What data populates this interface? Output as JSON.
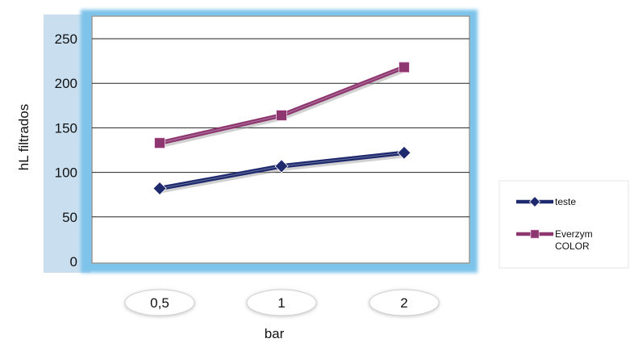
{
  "chart_data": {
    "type": "line",
    "title": "",
    "xlabel": "bar",
    "ylabel": "hL filtrados",
    "categories": [
      "0,5",
      "1",
      "2"
    ],
    "ylim": [
      0,
      250
    ],
    "yticks": [
      0,
      50,
      100,
      150,
      200,
      250
    ],
    "grid": true,
    "legend_position": "right",
    "series": [
      {
        "name": "teste",
        "values": [
          82,
          107,
          122
        ],
        "color": "#1f2a6e",
        "marker": "diamond"
      },
      {
        "name": "Everzym COLOR",
        "values": [
          133,
          164,
          218
        ],
        "color": "#8e3670",
        "marker": "square"
      }
    ],
    "colors": {
      "axis_panel": "#c9dff0",
      "plot_border": "#7dc3ea",
      "plot_background": "#ffffff",
      "category_pill": "#ffffff"
    }
  }
}
